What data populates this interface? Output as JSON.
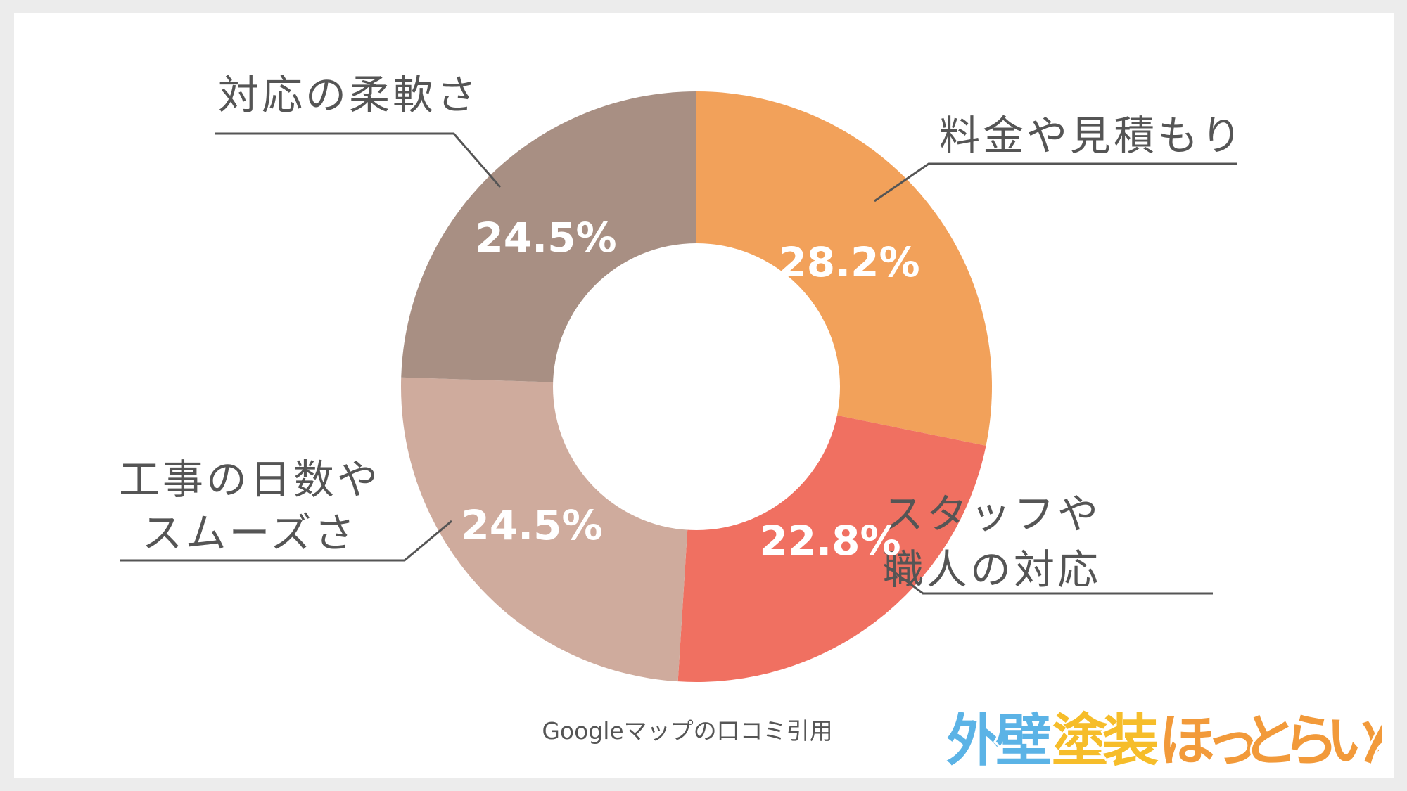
{
  "chart_data": {
    "type": "pie",
    "donut": true,
    "slices": [
      {
        "label": "料金や見積もり",
        "value": 28.2,
        "value_label": "28.2%",
        "color": "#F2A15A"
      },
      {
        "label": "スタッフや職人の対応",
        "label_lines": [
          "スタッフや",
          "職人の対応"
        ],
        "value": 22.8,
        "value_label": "22.8%",
        "color": "#F07061"
      },
      {
        "label": "工事の日数やスムーズさ",
        "label_lines": [
          "工事の日数や",
          "スムーズさ"
        ],
        "value": 24.5,
        "value_label": "24.5%",
        "color": "#CFAB9D"
      },
      {
        "label": "対応の柔軟さ",
        "value": 24.5,
        "value_label": "24.5%",
        "color": "#A88F83"
      }
    ]
  },
  "source_note": "Googleマップの口コミ引用",
  "logo": {
    "chars": [
      "外",
      "壁",
      "塗",
      "装",
      "ほ",
      "っ",
      "と",
      "ら",
      "い",
      "ん"
    ],
    "colors": [
      "#5BB3E6",
      "#5BB3E6",
      "#F6BD2A",
      "#F6BD2A",
      "#F29A3A",
      "#F29A3A",
      "#F29A3A",
      "#F29A3A",
      "#F29A3A",
      "#F29A3A"
    ]
  }
}
